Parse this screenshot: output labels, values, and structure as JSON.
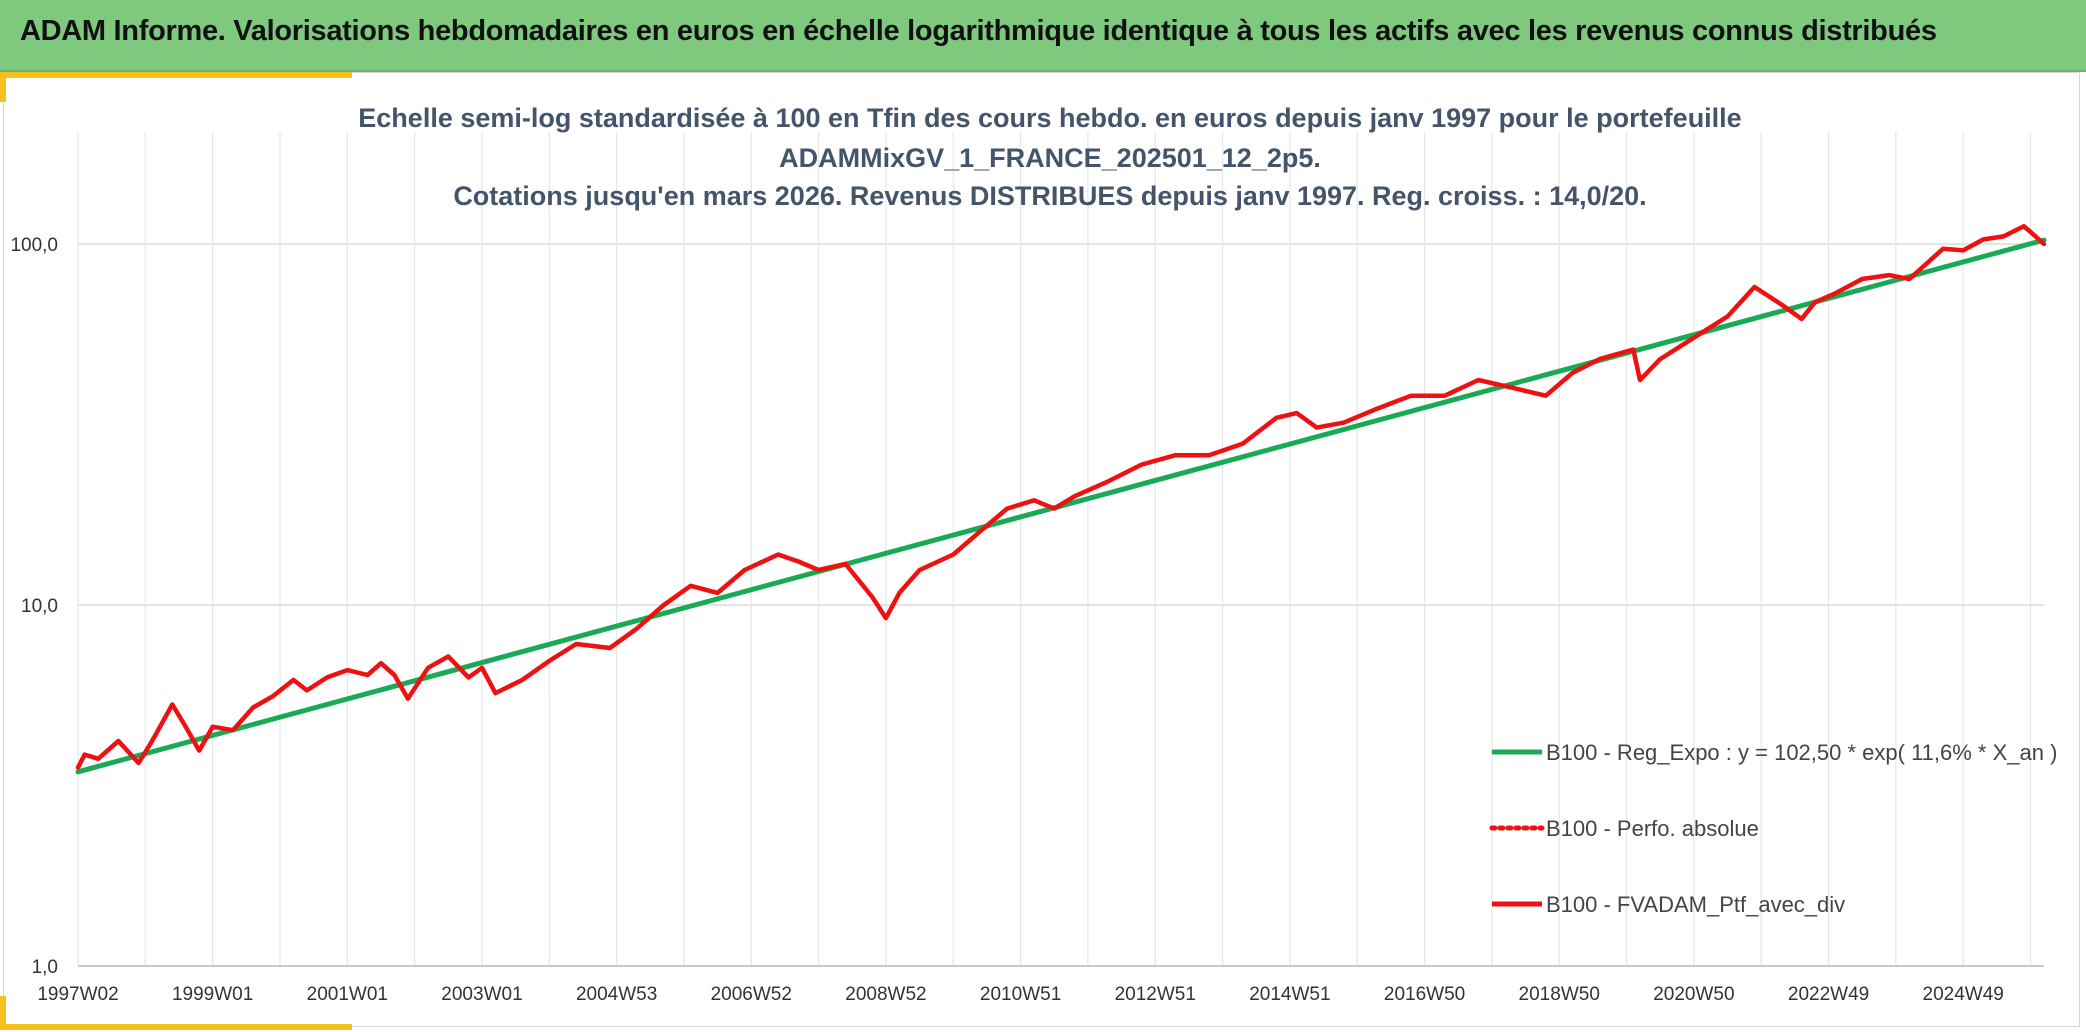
{
  "header": {
    "title": "ADAM Informe. Valorisations hebdomadaires en euros en échelle logarithmique identique à tous les actifs avec les revenus connus distribués"
  },
  "colors": {
    "header_bg": "#7fc97f",
    "accent": "#f6c01d",
    "regression": "#1aaa55",
    "series": "#ee1111",
    "title_text": "#44546a"
  },
  "chart_data": {
    "type": "line",
    "title_lines": [
      "Echelle semi-log standardisée à 100 en Tfin des cours hebdo. en euros depuis janv 1997 pour le portefeuille",
      "ADAMMixGV_1_FRANCE_202501_12_2p5.",
      "Cotations jusqu'en mars 2026. Revenus DISTRIBUES depuis janv 1997. Reg. croiss. : 14,0/20."
    ],
    "y_scale": "log",
    "ylim": [
      1,
      200
    ],
    "y_ticks": [
      1,
      10,
      100
    ],
    "y_tick_labels": [
      "1,0",
      "10,0",
      "100,0"
    ],
    "xlim": [
      1997.0,
      2026.2
    ],
    "x_ticks": [
      1997.0,
      1999.0,
      2001.0,
      2003.0,
      2005.0,
      2007.0,
      2009.0,
      2011.0,
      2013.0,
      2015.0,
      2017.0,
      2019.0,
      2021.0,
      2023.0,
      2025.0
    ],
    "x_tick_labels": [
      "1997W02",
      "1999W01",
      "2001W01",
      "2003W01",
      "2004W53",
      "2006W52",
      "2008W52",
      "2010W51",
      "2012W51",
      "2014W51",
      "2016W50",
      "2018W50",
      "2020W50",
      "2022W49",
      "2024W49"
    ],
    "grid": true,
    "legend_position": "bottom-right",
    "series": [
      {
        "name": "B100 - Reg_Expo : y = 102,50 * exp( 11,6% *  X_an )",
        "style": "solid",
        "color": "#1aaa55",
        "x": [
          1997.0,
          2026.2
        ],
        "y": [
          3.45,
          102.5
        ]
      },
      {
        "name": "B100 - Perfo. absolue",
        "style": "dotted",
        "color": "#ee1111",
        "x": [],
        "y": []
      },
      {
        "name": "B100 - FVADAM_Ptf_avec_div",
        "style": "solid",
        "color": "#ee1111",
        "x": [
          1997.0,
          1997.1,
          1997.3,
          1997.6,
          1997.9,
          1998.1,
          1998.4,
          1998.6,
          1998.8,
          1999.0,
          1999.3,
          1999.6,
          1999.9,
          2000.2,
          2000.4,
          2000.7,
          2001.0,
          2001.3,
          2001.5,
          2001.7,
          2001.9,
          2002.2,
          2002.5,
          2002.8,
          2003.0,
          2003.2,
          2003.6,
          2004.0,
          2004.4,
          2004.9,
          2005.3,
          2005.7,
          2006.1,
          2006.5,
          2006.9,
          2007.4,
          2007.7,
          2008.0,
          2008.4,
          2008.8,
          2009.0,
          2009.2,
          2009.5,
          2010.0,
          2010.4,
          2010.8,
          2011.2,
          2011.5,
          2011.8,
          2012.3,
          2012.8,
          2013.3,
          2013.8,
          2014.3,
          2014.8,
          2015.1,
          2015.4,
          2015.8,
          2016.3,
          2016.8,
          2017.3,
          2017.8,
          2018.3,
          2018.8,
          2019.2,
          2019.6,
          2020.1,
          2020.2,
          2020.5,
          2021.0,
          2021.5,
          2021.9,
          2022.3,
          2022.6,
          2022.8,
          2023.1,
          2023.5,
          2023.9,
          2024.2,
          2024.7,
          2025.0,
          2025.3,
          2025.6,
          2025.9,
          2026.0,
          2026.2
        ],
        "y": [
          3.55,
          3.85,
          3.75,
          4.2,
          3.65,
          4.2,
          5.3,
          4.6,
          3.95,
          4.6,
          4.5,
          5.2,
          5.6,
          6.2,
          5.8,
          6.3,
          6.6,
          6.4,
          6.9,
          6.4,
          5.5,
          6.7,
          7.2,
          6.3,
          6.7,
          5.7,
          6.2,
          7.0,
          7.8,
          7.6,
          8.6,
          10.0,
          11.3,
          10.8,
          12.5,
          13.8,
          13.2,
          12.5,
          13.0,
          10.5,
          9.2,
          10.8,
          12.5,
          13.8,
          16.0,
          18.5,
          19.5,
          18.5,
          20.0,
          22.0,
          24.5,
          26.0,
          26.0,
          28.0,
          33.0,
          34.0,
          31.0,
          32.0,
          35.0,
          38.0,
          38.0,
          42.0,
          40.0,
          38.0,
          44.0,
          48.0,
          51.0,
          42.0,
          48.0,
          55.0,
          63.0,
          76.0,
          68.0,
          62.0,
          69.0,
          73.0,
          80.0,
          82.0,
          80.0,
          97.0,
          96.0,
          103.0,
          105.0,
          112.0,
          108.0,
          100.0
        ]
      }
    ]
  }
}
